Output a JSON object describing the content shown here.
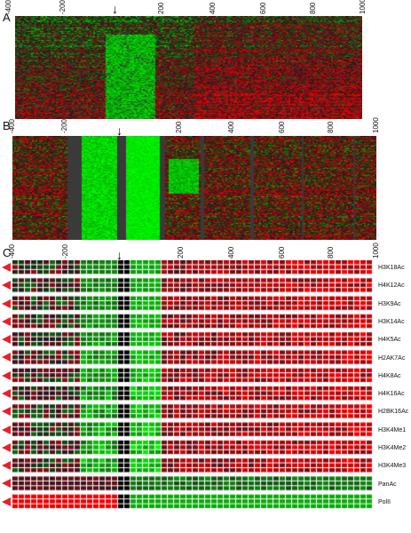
{
  "panels": {
    "a": {
      "letter": "A",
      "ticks": [
        "-400",
        "-200",
        "200",
        "400",
        "600",
        "800",
        "1000"
      ]
    },
    "b": {
      "letter": "B",
      "ticks": [
        "-400",
        "-200",
        "200",
        "400",
        "600",
        "800",
        "1000"
      ]
    },
    "c": {
      "letter": "C",
      "ticks": [
        "-400",
        "-200",
        "200",
        "400",
        "600",
        "800",
        "1000"
      ]
    }
  },
  "arrow_glyph": "↓",
  "histone_marks": [
    "H3K18Ac",
    "H4K12Ac",
    "H3K9Ac",
    "H3K14Ac",
    "H4K5Ac",
    "H2AK7Ac",
    "H4K8Ac",
    "H4K16Ac",
    "H2BK16Ac",
    "H3K4Me1",
    "H3K4Me2",
    "H3K4Me3",
    "PanAc",
    "PolII"
  ],
  "colors": {
    "activated": "#e8102a",
    "repressed": "#18d818",
    "missing": "#3a3a3a",
    "wedge": "#e8202a"
  }
}
